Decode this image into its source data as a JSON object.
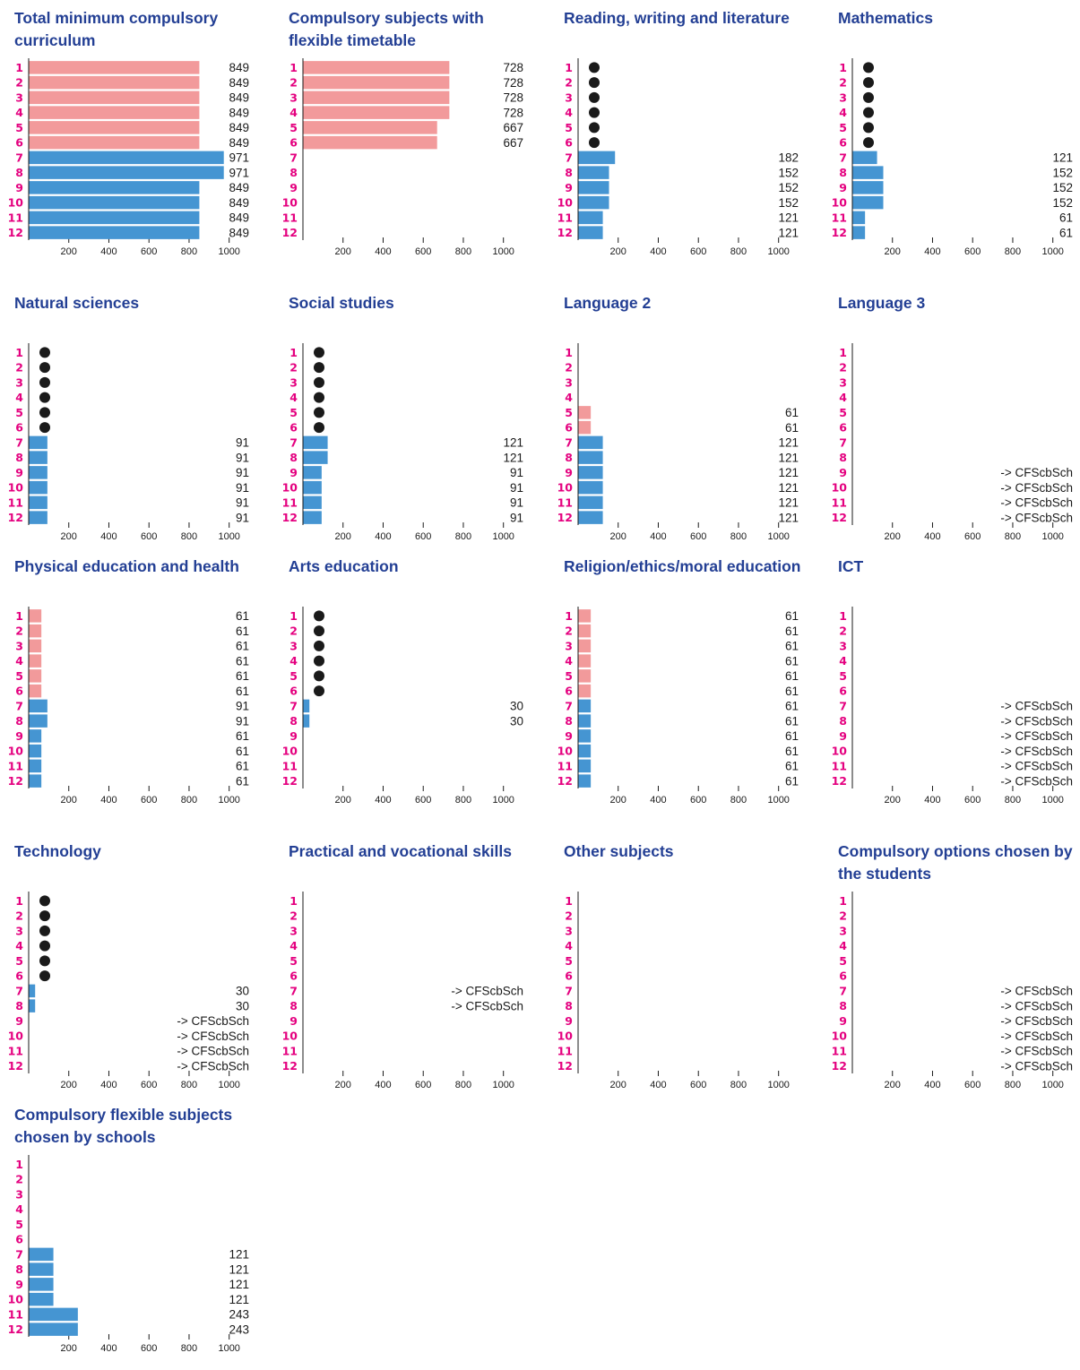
{
  "colors": {
    "part_time": "#f29a9b",
    "full_time": "#4595d2",
    "dot": "#1a1a1a",
    "grade": "#e4007f",
    "title": "#233f94"
  },
  "chart_data": [
    {
      "type": "bar",
      "title": "Total minimum compulsory curriculum",
      "xlim": [
        0,
        1000
      ],
      "xticks": [
        200,
        400,
        600,
        800,
        1000
      ],
      "grades": [
        "1",
        "2",
        "3",
        "4",
        "5",
        "6",
        "7",
        "8",
        "9",
        "10",
        "11",
        "12"
      ],
      "rows": [
        {
          "color": "part_time",
          "value": 849,
          "label": "849"
        },
        {
          "color": "part_time",
          "value": 849,
          "label": "849"
        },
        {
          "color": "part_time",
          "value": 849,
          "label": "849"
        },
        {
          "color": "part_time",
          "value": 849,
          "label": "849"
        },
        {
          "color": "part_time",
          "value": 849,
          "label": "849"
        },
        {
          "color": "part_time",
          "value": 849,
          "label": "849"
        },
        {
          "color": "full_time",
          "value": 971,
          "label": "971"
        },
        {
          "color": "full_time",
          "value": 971,
          "label": "971"
        },
        {
          "color": "full_time",
          "value": 849,
          "label": "849"
        },
        {
          "color": "full_time",
          "value": 849,
          "label": "849"
        },
        {
          "color": "full_time",
          "value": 849,
          "label": "849"
        },
        {
          "color": "full_time",
          "value": 849,
          "label": "849"
        }
      ]
    },
    {
      "type": "bar",
      "title": "Compulsory subjects with flexible timetable",
      "xlim": [
        0,
        1000
      ],
      "xticks": [
        200,
        400,
        600,
        800,
        1000
      ],
      "grades": [
        "1",
        "2",
        "3",
        "4",
        "5",
        "6",
        "7",
        "8",
        "9",
        "10",
        "11",
        "12"
      ],
      "rows": [
        {
          "color": "part_time",
          "value": 728,
          "label": "728"
        },
        {
          "color": "part_time",
          "value": 728,
          "label": "728"
        },
        {
          "color": "part_time",
          "value": 728,
          "label": "728"
        },
        {
          "color": "part_time",
          "value": 728,
          "label": "728"
        },
        {
          "color": "part_time",
          "value": 667,
          "label": "667"
        },
        {
          "color": "part_time",
          "value": 667,
          "label": "667"
        },
        {},
        {},
        {},
        {},
        {},
        {}
      ]
    },
    {
      "type": "bar",
      "title": "Reading, writing and literature",
      "xlim": [
        0,
        1000
      ],
      "xticks": [
        200,
        400,
        600,
        800,
        1000
      ],
      "grades": [
        "1",
        "2",
        "3",
        "4",
        "5",
        "6",
        "7",
        "8",
        "9",
        "10",
        "11",
        "12"
      ],
      "rows": [
        {
          "dot": true
        },
        {
          "dot": true
        },
        {
          "dot": true
        },
        {
          "dot": true
        },
        {
          "dot": true
        },
        {
          "dot": true
        },
        {
          "color": "full_time",
          "value": 182,
          "label": "182"
        },
        {
          "color": "full_time",
          "value": 152,
          "label": "152"
        },
        {
          "color": "full_time",
          "value": 152,
          "label": "152"
        },
        {
          "color": "full_time",
          "value": 152,
          "label": "152"
        },
        {
          "color": "full_time",
          "value": 121,
          "label": "121"
        },
        {
          "color": "full_time",
          "value": 121,
          "label": "121"
        }
      ]
    },
    {
      "type": "bar",
      "title": "Mathematics",
      "xlim": [
        0,
        1000
      ],
      "xticks": [
        200,
        400,
        600,
        800,
        1000
      ],
      "grades": [
        "1",
        "2",
        "3",
        "4",
        "5",
        "6",
        "7",
        "8",
        "9",
        "10",
        "11",
        "12"
      ],
      "rows": [
        {
          "dot": true
        },
        {
          "dot": true
        },
        {
          "dot": true
        },
        {
          "dot": true
        },
        {
          "dot": true
        },
        {
          "dot": true
        },
        {
          "color": "full_time",
          "value": 121,
          "label": "121"
        },
        {
          "color": "full_time",
          "value": 152,
          "label": "152"
        },
        {
          "color": "full_time",
          "value": 152,
          "label": "152"
        },
        {
          "color": "full_time",
          "value": 152,
          "label": "152"
        },
        {
          "color": "full_time",
          "value": 61,
          "label": "61"
        },
        {
          "color": "full_time",
          "value": 61,
          "label": "61"
        }
      ]
    },
    {
      "type": "bar",
      "title": "Natural sciences",
      "xlim": [
        0,
        1000
      ],
      "xticks": [
        200,
        400,
        600,
        800,
        1000
      ],
      "grades": [
        "1",
        "2",
        "3",
        "4",
        "5",
        "6",
        "7",
        "8",
        "9",
        "10",
        "11",
        "12"
      ],
      "rows": [
        {
          "dot": true
        },
        {
          "dot": true
        },
        {
          "dot": true
        },
        {
          "dot": true
        },
        {
          "dot": true
        },
        {
          "dot": true
        },
        {
          "color": "full_time",
          "value": 91,
          "label": "91"
        },
        {
          "color": "full_time",
          "value": 91,
          "label": "91"
        },
        {
          "color": "full_time",
          "value": 91,
          "label": "91"
        },
        {
          "color": "full_time",
          "value": 91,
          "label": "91"
        },
        {
          "color": "full_time",
          "value": 91,
          "label": "91"
        },
        {
          "color": "full_time",
          "value": 91,
          "label": "91"
        }
      ]
    },
    {
      "type": "bar",
      "title": "Social studies",
      "xlim": [
        0,
        1000
      ],
      "xticks": [
        200,
        400,
        600,
        800,
        1000
      ],
      "grades": [
        "1",
        "2",
        "3",
        "4",
        "5",
        "6",
        "7",
        "8",
        "9",
        "10",
        "11",
        "12"
      ],
      "rows": [
        {
          "dot": true
        },
        {
          "dot": true
        },
        {
          "dot": true
        },
        {
          "dot": true
        },
        {
          "dot": true
        },
        {
          "dot": true
        },
        {
          "color": "full_time",
          "value": 121,
          "label": "121"
        },
        {
          "color": "full_time",
          "value": 121,
          "label": "121"
        },
        {
          "color": "full_time",
          "value": 91,
          "label": "91"
        },
        {
          "color": "full_time",
          "value": 91,
          "label": "91"
        },
        {
          "color": "full_time",
          "value": 91,
          "label": "91"
        },
        {
          "color": "full_time",
          "value": 91,
          "label": "91"
        }
      ]
    },
    {
      "type": "bar",
      "title": "Language 2",
      "xlim": [
        0,
        1000
      ],
      "xticks": [
        200,
        400,
        600,
        800,
        1000
      ],
      "grades": [
        "1",
        "2",
        "3",
        "4",
        "5",
        "6",
        "7",
        "8",
        "9",
        "10",
        "11",
        "12"
      ],
      "rows": [
        {},
        {},
        {},
        {},
        {
          "color": "part_time",
          "value": 61,
          "label": "61"
        },
        {
          "color": "part_time",
          "value": 61,
          "label": "61"
        },
        {
          "color": "full_time",
          "value": 121,
          "label": "121"
        },
        {
          "color": "full_time",
          "value": 121,
          "label": "121"
        },
        {
          "color": "full_time",
          "value": 121,
          "label": "121"
        },
        {
          "color": "full_time",
          "value": 121,
          "label": "121"
        },
        {
          "color": "full_time",
          "value": 121,
          "label": "121"
        },
        {
          "color": "full_time",
          "value": 121,
          "label": "121"
        }
      ]
    },
    {
      "type": "bar",
      "title": "Language 3",
      "xlim": [
        0,
        1000
      ],
      "xticks": [
        200,
        400,
        600,
        800,
        1000
      ],
      "grades": [
        "1",
        "2",
        "3",
        "4",
        "5",
        "6",
        "7",
        "8",
        "9",
        "10",
        "11",
        "12"
      ],
      "rows": [
        {},
        {},
        {},
        {},
        {},
        {},
        {},
        {},
        {
          "label": "-> CFScbSch"
        },
        {
          "label": "-> CFScbSch"
        },
        {
          "label": "-> CFScbSch"
        },
        {
          "label": "-> CFScbSch"
        }
      ]
    },
    {
      "type": "bar",
      "title": "Physical education and health",
      "xlim": [
        0,
        1000
      ],
      "xticks": [
        200,
        400,
        600,
        800,
        1000
      ],
      "grades": [
        "1",
        "2",
        "3",
        "4",
        "5",
        "6",
        "7",
        "8",
        "9",
        "10",
        "11",
        "12"
      ],
      "rows": [
        {
          "color": "part_time",
          "value": 61,
          "label": "61"
        },
        {
          "color": "part_time",
          "value": 61,
          "label": "61"
        },
        {
          "color": "part_time",
          "value": 61,
          "label": "61"
        },
        {
          "color": "part_time",
          "value": 61,
          "label": "61"
        },
        {
          "color": "part_time",
          "value": 61,
          "label": "61"
        },
        {
          "color": "part_time",
          "value": 61,
          "label": "61"
        },
        {
          "color": "full_time",
          "value": 91,
          "label": "91"
        },
        {
          "color": "full_time",
          "value": 91,
          "label": "91"
        },
        {
          "color": "full_time",
          "value": 61,
          "label": "61"
        },
        {
          "color": "full_time",
          "value": 61,
          "label": "61"
        },
        {
          "color": "full_time",
          "value": 61,
          "label": "61"
        },
        {
          "color": "full_time",
          "value": 61,
          "label": "61"
        }
      ]
    },
    {
      "type": "bar",
      "title": "Arts education",
      "xlim": [
        0,
        1000
      ],
      "xticks": [
        200,
        400,
        600,
        800,
        1000
      ],
      "grades": [
        "1",
        "2",
        "3",
        "4",
        "5",
        "6",
        "7",
        "8",
        "9",
        "10",
        "11",
        "12"
      ],
      "rows": [
        {
          "dot": true
        },
        {
          "dot": true
        },
        {
          "dot": true
        },
        {
          "dot": true
        },
        {
          "dot": true
        },
        {
          "dot": true
        },
        {
          "color": "full_time",
          "value": 30,
          "label": "30"
        },
        {
          "color": "full_time",
          "value": 30,
          "label": "30"
        },
        {},
        {},
        {},
        {}
      ]
    },
    {
      "type": "bar",
      "title": "Religion/ethics/moral education",
      "xlim": [
        0,
        1000
      ],
      "xticks": [
        200,
        400,
        600,
        800,
        1000
      ],
      "grades": [
        "1",
        "2",
        "3",
        "4",
        "5",
        "6",
        "7",
        "8",
        "9",
        "10",
        "11",
        "12"
      ],
      "rows": [
        {
          "color": "part_time",
          "value": 61,
          "label": "61"
        },
        {
          "color": "part_time",
          "value": 61,
          "label": "61"
        },
        {
          "color": "part_time",
          "value": 61,
          "label": "61"
        },
        {
          "color": "part_time",
          "value": 61,
          "label": "61"
        },
        {
          "color": "part_time",
          "value": 61,
          "label": "61"
        },
        {
          "color": "part_time",
          "value": 61,
          "label": "61"
        },
        {
          "color": "full_time",
          "value": 61,
          "label": "61"
        },
        {
          "color": "full_time",
          "value": 61,
          "label": "61"
        },
        {
          "color": "full_time",
          "value": 61,
          "label": "61"
        },
        {
          "color": "full_time",
          "value": 61,
          "label": "61"
        },
        {
          "color": "full_time",
          "value": 61,
          "label": "61"
        },
        {
          "color": "full_time",
          "value": 61,
          "label": "61"
        }
      ]
    },
    {
      "type": "bar",
      "title": "ICT",
      "xlim": [
        0,
        1000
      ],
      "xticks": [
        200,
        400,
        600,
        800,
        1000
      ],
      "grades": [
        "1",
        "2",
        "3",
        "4",
        "5",
        "6",
        "7",
        "8",
        "9",
        "10",
        "11",
        "12"
      ],
      "rows": [
        {},
        {},
        {},
        {},
        {},
        {},
        {
          "label": "-> CFScbSch"
        },
        {
          "label": "-> CFScbSch"
        },
        {
          "label": "-> CFScbSch"
        },
        {
          "label": "-> CFScbSch"
        },
        {
          "label": "-> CFScbSch"
        },
        {
          "label": "-> CFScbSch"
        }
      ]
    },
    {
      "type": "bar",
      "title": "Technology",
      "xlim": [
        0,
        1000
      ],
      "xticks": [
        200,
        400,
        600,
        800,
        1000
      ],
      "grades": [
        "1",
        "2",
        "3",
        "4",
        "5",
        "6",
        "7",
        "8",
        "9",
        "10",
        "11",
        "12"
      ],
      "rows": [
        {
          "dot": true
        },
        {
          "dot": true
        },
        {
          "dot": true
        },
        {
          "dot": true
        },
        {
          "dot": true
        },
        {
          "dot": true
        },
        {
          "color": "full_time",
          "value": 30,
          "label": "30"
        },
        {
          "color": "full_time",
          "value": 30,
          "label": "30"
        },
        {
          "label": "-> CFScbSch"
        },
        {
          "label": "-> CFScbSch"
        },
        {
          "label": "-> CFScbSch"
        },
        {
          "label": "-> CFScbSch"
        }
      ]
    },
    {
      "type": "bar",
      "title": "Practical and vocational skills",
      "xlim": [
        0,
        1000
      ],
      "xticks": [
        200,
        400,
        600,
        800,
        1000
      ],
      "grades": [
        "1",
        "2",
        "3",
        "4",
        "5",
        "6",
        "7",
        "8",
        "9",
        "10",
        "11",
        "12"
      ],
      "rows": [
        {},
        {},
        {},
        {},
        {},
        {},
        {
          "label": "-> CFScbSch"
        },
        {
          "label": "-> CFScbSch"
        },
        {},
        {},
        {},
        {}
      ]
    },
    {
      "type": "bar",
      "title": "Other subjects",
      "xlim": [
        0,
        1000
      ],
      "xticks": [
        200,
        400,
        600,
        800,
        1000
      ],
      "grades": [
        "1",
        "2",
        "3",
        "4",
        "5",
        "6",
        "7",
        "8",
        "9",
        "10",
        "11",
        "12"
      ],
      "rows": [
        {},
        {},
        {},
        {},
        {},
        {},
        {},
        {},
        {},
        {},
        {},
        {}
      ]
    },
    {
      "type": "bar",
      "title": "Compulsory options chosen by the students",
      "xlim": [
        0,
        1000
      ],
      "xticks": [
        200,
        400,
        600,
        800,
        1000
      ],
      "grades": [
        "1",
        "2",
        "3",
        "4",
        "5",
        "6",
        "7",
        "8",
        "9",
        "10",
        "11",
        "12"
      ],
      "rows": [
        {},
        {},
        {},
        {},
        {},
        {},
        {
          "label": "-> CFScbSch"
        },
        {
          "label": "-> CFScbSch"
        },
        {
          "label": "-> CFScbSch"
        },
        {
          "label": "-> CFScbSch"
        },
        {
          "label": "-> CFScbSch"
        },
        {
          "label": "-> CFScbSch"
        }
      ]
    },
    {
      "type": "bar",
      "title": "Compulsory flexible subjects chosen by schools",
      "xlim": [
        0,
        1000
      ],
      "xticks": [
        200,
        400,
        600,
        800,
        1000
      ],
      "grades": [
        "1",
        "2",
        "3",
        "4",
        "5",
        "6",
        "7",
        "8",
        "9",
        "10",
        "11",
        "12"
      ],
      "rows": [
        {},
        {},
        {},
        {},
        {},
        {},
        {
          "color": "full_time",
          "value": 121,
          "label": "121"
        },
        {
          "color": "full_time",
          "value": 121,
          "label": "121"
        },
        {
          "color": "full_time",
          "value": 121,
          "label": "121"
        },
        {
          "color": "full_time",
          "value": 121,
          "label": "121"
        },
        {
          "color": "full_time",
          "value": 243,
          "label": "243"
        },
        {
          "color": "full_time",
          "value": 243,
          "label": "243"
        }
      ]
    }
  ]
}
